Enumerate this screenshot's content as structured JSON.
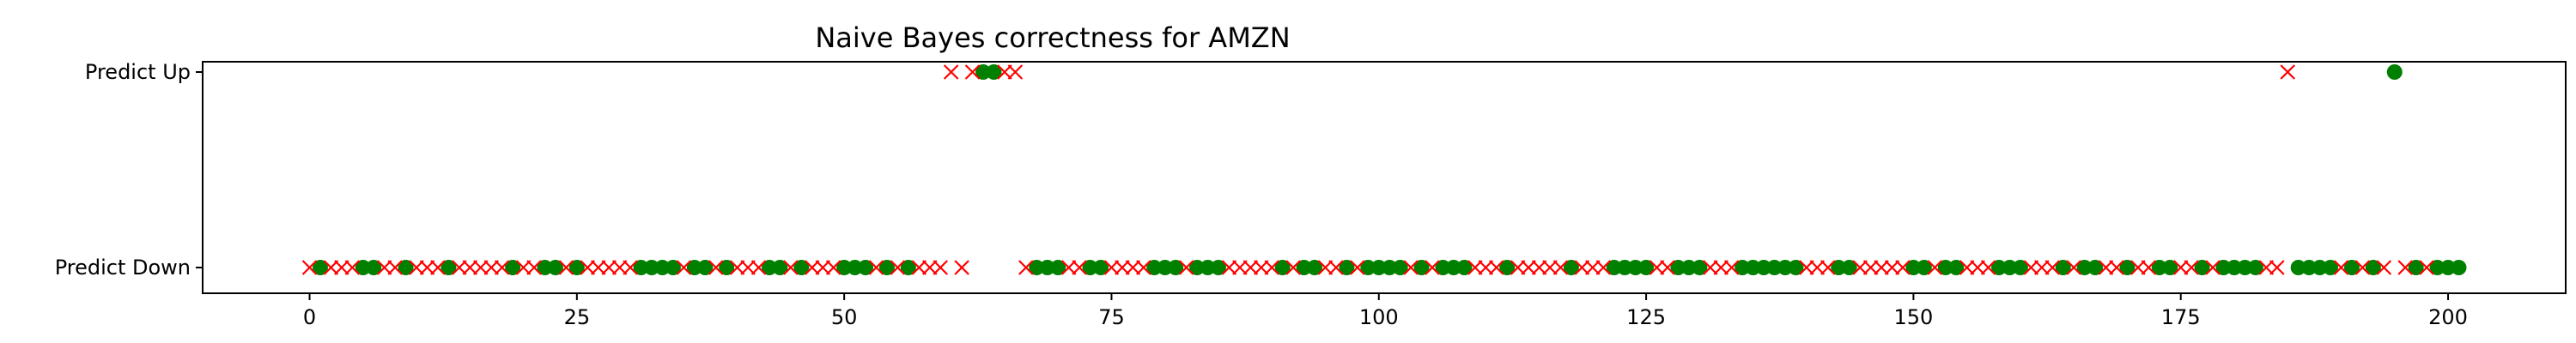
{
  "chart_data": {
    "type": "scatter",
    "title": "Naive Bayes correctness for AMZN",
    "xlabel": "",
    "ylabel": "",
    "xlim": [
      -10,
      211
    ],
    "x_ticks": [
      0,
      25,
      50,
      75,
      100,
      125,
      150,
      175,
      200
    ],
    "y_categories": [
      "Predict Down",
      "Predict Up"
    ],
    "grid": false,
    "colors": {
      "correct": "#008000",
      "incorrect": "#ff0000"
    },
    "series": [
      {
        "marker": "circle",
        "color": "#008000",
        "points": [
          [
            1,
            0
          ],
          [
            5,
            0
          ],
          [
            6,
            0
          ],
          [
            9,
            0
          ],
          [
            13,
            0
          ],
          [
            19,
            0
          ],
          [
            22,
            0
          ],
          [
            23,
            0
          ],
          [
            25,
            0
          ],
          [
            31,
            0
          ],
          [
            32,
            0
          ],
          [
            33,
            0
          ],
          [
            34,
            0
          ],
          [
            36,
            0
          ],
          [
            37,
            0
          ],
          [
            39,
            0
          ],
          [
            43,
            0
          ],
          [
            44,
            0
          ],
          [
            46,
            0
          ],
          [
            50,
            0
          ],
          [
            51,
            0
          ],
          [
            52,
            0
          ],
          [
            54,
            0
          ],
          [
            56,
            0
          ],
          [
            63,
            1
          ],
          [
            64,
            1
          ],
          [
            68,
            0
          ],
          [
            69,
            0
          ],
          [
            70,
            0
          ],
          [
            73,
            0
          ],
          [
            74,
            0
          ],
          [
            79,
            0
          ],
          [
            80,
            0
          ],
          [
            81,
            0
          ],
          [
            83,
            0
          ],
          [
            84,
            0
          ],
          [
            85,
            0
          ],
          [
            91,
            0
          ],
          [
            93,
            0
          ],
          [
            94,
            0
          ],
          [
            97,
            0
          ],
          [
            99,
            0
          ],
          [
            100,
            0
          ],
          [
            101,
            0
          ],
          [
            102,
            0
          ],
          [
            104,
            0
          ],
          [
            106,
            0
          ],
          [
            107,
            0
          ],
          [
            108,
            0
          ],
          [
            112,
            0
          ],
          [
            118,
            0
          ],
          [
            122,
            0
          ],
          [
            123,
            0
          ],
          [
            124,
            0
          ],
          [
            125,
            0
          ],
          [
            128,
            0
          ],
          [
            129,
            0
          ],
          [
            130,
            0
          ],
          [
            134,
            0
          ],
          [
            135,
            0
          ],
          [
            136,
            0
          ],
          [
            137,
            0
          ],
          [
            138,
            0
          ],
          [
            139,
            0
          ],
          [
            143,
            0
          ],
          [
            144,
            0
          ],
          [
            150,
            0
          ],
          [
            151,
            0
          ],
          [
            153,
            0
          ],
          [
            154,
            0
          ],
          [
            158,
            0
          ],
          [
            159,
            0
          ],
          [
            160,
            0
          ],
          [
            164,
            0
          ],
          [
            166,
            0
          ],
          [
            167,
            0
          ],
          [
            170,
            0
          ],
          [
            173,
            0
          ],
          [
            174,
            0
          ],
          [
            177,
            0
          ],
          [
            179,
            0
          ],
          [
            180,
            0
          ],
          [
            181,
            0
          ],
          [
            182,
            0
          ],
          [
            186,
            0
          ],
          [
            187,
            0
          ],
          [
            188,
            0
          ],
          [
            189,
            0
          ],
          [
            191,
            0
          ],
          [
            193,
            0
          ],
          [
            195,
            1
          ],
          [
            197,
            0
          ],
          [
            199,
            0
          ],
          [
            200,
            0
          ],
          [
            201,
            0
          ]
        ]
      },
      {
        "marker": "x",
        "color": "#ff0000",
        "points": [
          [
            0,
            0
          ],
          [
            2,
            0
          ],
          [
            3,
            0
          ],
          [
            4,
            0
          ],
          [
            7,
            0
          ],
          [
            8,
            0
          ],
          [
            10,
            0
          ],
          [
            11,
            0
          ],
          [
            12,
            0
          ],
          [
            14,
            0
          ],
          [
            15,
            0
          ],
          [
            16,
            0
          ],
          [
            17,
            0
          ],
          [
            18,
            0
          ],
          [
            20,
            0
          ],
          [
            21,
            0
          ],
          [
            24,
            0
          ],
          [
            26,
            0
          ],
          [
            27,
            0
          ],
          [
            28,
            0
          ],
          [
            29,
            0
          ],
          [
            30,
            0
          ],
          [
            35,
            0
          ],
          [
            38,
            0
          ],
          [
            40,
            0
          ],
          [
            41,
            0
          ],
          [
            42,
            0
          ],
          [
            45,
            0
          ],
          [
            47,
            0
          ],
          [
            48,
            0
          ],
          [
            49,
            0
          ],
          [
            53,
            0
          ],
          [
            55,
            0
          ],
          [
            57,
            0
          ],
          [
            58,
            0
          ],
          [
            59,
            0
          ],
          [
            61,
            0
          ],
          [
            60,
            1
          ],
          [
            62,
            1
          ],
          [
            65,
            1
          ],
          [
            66,
            1
          ],
          [
            67,
            0
          ],
          [
            71,
            0
          ],
          [
            72,
            0
          ],
          [
            75,
            0
          ],
          [
            76,
            0
          ],
          [
            77,
            0
          ],
          [
            78,
            0
          ],
          [
            82,
            0
          ],
          [
            86,
            0
          ],
          [
            87,
            0
          ],
          [
            88,
            0
          ],
          [
            89,
            0
          ],
          [
            90,
            0
          ],
          [
            92,
            0
          ],
          [
            95,
            0
          ],
          [
            96,
            0
          ],
          [
            98,
            0
          ],
          [
            103,
            0
          ],
          [
            105,
            0
          ],
          [
            109,
            0
          ],
          [
            110,
            0
          ],
          [
            111,
            0
          ],
          [
            113,
            0
          ],
          [
            114,
            0
          ],
          [
            115,
            0
          ],
          [
            116,
            0
          ],
          [
            117,
            0
          ],
          [
            119,
            0
          ],
          [
            120,
            0
          ],
          [
            121,
            0
          ],
          [
            126,
            0
          ],
          [
            127,
            0
          ],
          [
            131,
            0
          ],
          [
            132,
            0
          ],
          [
            133,
            0
          ],
          [
            140,
            0
          ],
          [
            141,
            0
          ],
          [
            142,
            0
          ],
          [
            145,
            0
          ],
          [
            146,
            0
          ],
          [
            147,
            0
          ],
          [
            148,
            0
          ],
          [
            149,
            0
          ],
          [
            152,
            0
          ],
          [
            155,
            0
          ],
          [
            156,
            0
          ],
          [
            157,
            0
          ],
          [
            161,
            0
          ],
          [
            162,
            0
          ],
          [
            163,
            0
          ],
          [
            165,
            0
          ],
          [
            168,
            0
          ],
          [
            169,
            0
          ],
          [
            171,
            0
          ],
          [
            172,
            0
          ],
          [
            175,
            0
          ],
          [
            176,
            0
          ],
          [
            178,
            0
          ],
          [
            183,
            0
          ],
          [
            184,
            0
          ],
          [
            185,
            1
          ],
          [
            190,
            0
          ],
          [
            192,
            0
          ],
          [
            194,
            0
          ],
          [
            196,
            0
          ],
          [
            198,
            0
          ]
        ]
      }
    ]
  }
}
